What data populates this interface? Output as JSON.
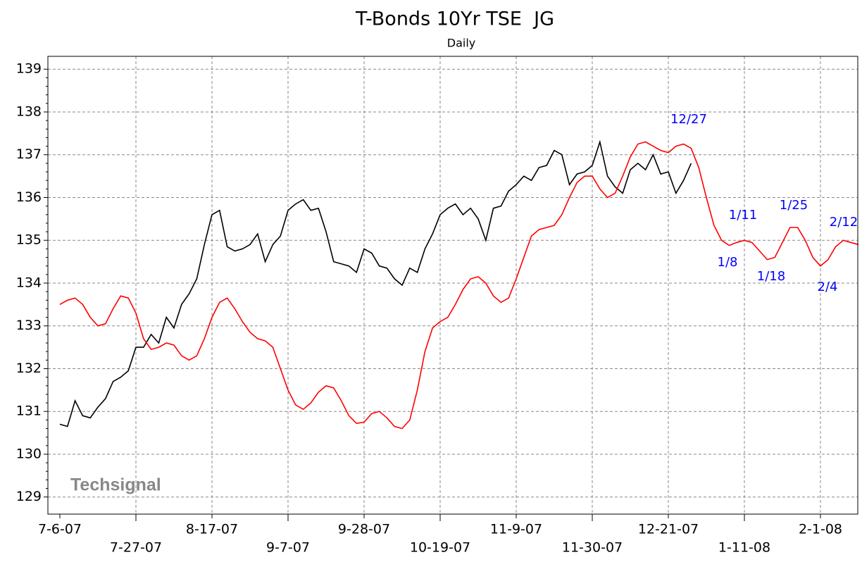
{
  "chart_data": {
    "type": "line",
    "title": "T-Bonds 10Yr TSE  JG",
    "subtitle": "Daily",
    "watermark": "Techsignal",
    "categories": [
      "7-6-07",
      null,
      null,
      null,
      null,
      null,
      null,
      null,
      null,
      null,
      "7-27-07",
      null,
      null,
      null,
      null,
      null,
      null,
      null,
      null,
      null,
      "8-17-07",
      null,
      null,
      null,
      null,
      null,
      null,
      null,
      null,
      null,
      "9-7-07",
      null,
      null,
      null,
      null,
      null,
      null,
      null,
      null,
      null,
      "9-28-07",
      null,
      null,
      null,
      null,
      null,
      null,
      null,
      null,
      null,
      "10-19-07",
      null,
      null,
      null,
      null,
      null,
      null,
      null,
      null,
      null,
      "11-9-07",
      null,
      null,
      null,
      null,
      null,
      null,
      null,
      null,
      null,
      "11-30-07",
      null,
      null,
      null,
      null,
      null,
      null,
      null,
      null,
      null,
      "12-21-07",
      null,
      null,
      null,
      null,
      null,
      null,
      null,
      null,
      null,
      "1-11-08",
      null,
      null,
      null,
      null,
      null,
      null,
      null,
      null,
      null,
      "2-1-08",
      null,
      null,
      null,
      null,
      null
    ],
    "series": [
      {
        "color": "#000000",
        "values": [
          130.7,
          130.65,
          131.25,
          130.9,
          130.85,
          131.1,
          131.3,
          131.7,
          131.8,
          131.95,
          132.5,
          132.5,
          132.8,
          132.6,
          133.2,
          132.95,
          133.5,
          133.75,
          134.1,
          134.9,
          135.6,
          135.7,
          134.85,
          134.75,
          134.8,
          134.9,
          135.15,
          134.5,
          134.9,
          135.1,
          135.7,
          135.85,
          135.95,
          135.7,
          135.75,
          135.2,
          134.5,
          134.45,
          134.4,
          134.25,
          134.8,
          134.7,
          134.4,
          134.35,
          134.1,
          133.95,
          134.35,
          134.25,
          134.8,
          135.15,
          135.6,
          135.75,
          135.85,
          135.6,
          135.75,
          135.5,
          135.0,
          135.75,
          135.8,
          136.15,
          136.3,
          136.5,
          136.4,
          136.7,
          136.75,
          137.1,
          137.0,
          136.3,
          136.55,
          136.6,
          136.75,
          137.3,
          136.5,
          136.25,
          136.1,
          136.65,
          136.8,
          136.65,
          137.0,
          136.55,
          136.6,
          136.1,
          136.4,
          136.8,
          null,
          null,
          null,
          null,
          null,
          null,
          null,
          null,
          null,
          null,
          null,
          null,
          null,
          null,
          null,
          null,
          null,
          null,
          null,
          null,
          null,
          null
        ]
      },
      {
        "color": "#ff0000",
        "values": [
          133.5,
          133.6,
          133.65,
          133.5,
          133.2,
          133.0,
          133.05,
          133.4,
          133.7,
          133.65,
          133.3,
          132.7,
          132.45,
          132.5,
          132.6,
          132.55,
          132.3,
          132.2,
          132.3,
          132.7,
          133.2,
          133.55,
          133.65,
          133.4,
          133.1,
          132.85,
          132.7,
          132.65,
          132.5,
          132.0,
          131.5,
          131.15,
          131.05,
          131.2,
          131.45,
          131.6,
          131.55,
          131.25,
          130.9,
          130.72,
          130.75,
          130.95,
          131.0,
          130.85,
          130.65,
          130.6,
          130.8,
          131.5,
          132.4,
          132.95,
          133.1,
          133.2,
          133.5,
          133.85,
          134.1,
          134.15,
          134.0,
          133.7,
          133.55,
          133.65,
          134.1,
          134.6,
          135.1,
          135.25,
          135.3,
          135.35,
          135.6,
          136.0,
          136.35,
          136.5,
          136.5,
          136.2,
          136.0,
          136.1,
          136.5,
          136.95,
          137.25,
          137.3,
          137.2,
          137.1,
          137.05,
          137.2,
          137.25,
          137.15,
          136.7,
          136.0,
          135.35,
          135.0,
          134.88,
          134.95,
          135.0,
          134.95,
          134.75,
          134.55,
          134.6,
          134.95,
          135.3,
          135.3,
          135.0,
          134.6,
          134.4,
          134.55,
          134.85,
          135.0,
          134.95,
          134.9
        ]
      }
    ],
    "annotations": [
      "12/27",
      "1/11",
      "1/8",
      "1/18",
      "1/25",
      "2/4",
      "2/12"
    ],
    "annotation_color": "#0000ff",
    "ylim": [
      128.6,
      139.3
    ],
    "yticks": [
      129,
      130,
      131,
      132,
      133,
      134,
      135,
      136,
      137,
      138,
      139
    ],
    "grid": true
  }
}
